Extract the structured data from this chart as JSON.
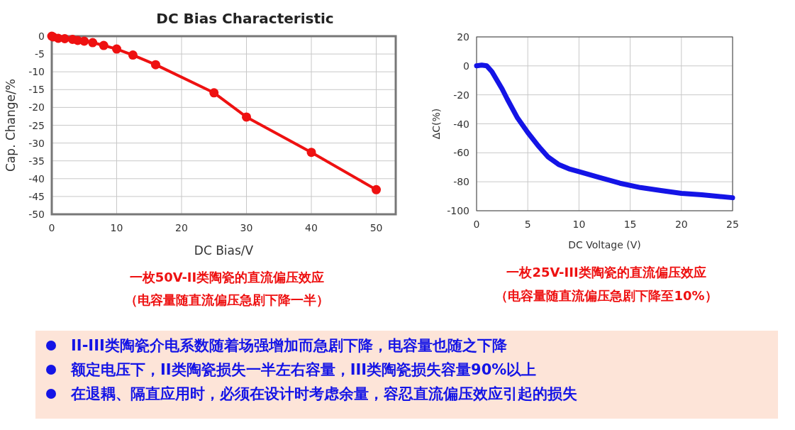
{
  "chart_data": [
    {
      "type": "line",
      "title": "DC Bias Characteristic",
      "xlabel": "DC Bias/V",
      "ylabel": "Cap. Change/%",
      "color": "#ee1111",
      "marker": "circle",
      "grid": true,
      "xlim": [
        0,
        53
      ],
      "ylim": [
        -50,
        0
      ],
      "xticks": [
        0,
        10,
        20,
        30,
        40,
        50
      ],
      "yticks": [
        0,
        -5,
        -10,
        -15,
        -20,
        -25,
        -30,
        -35,
        -40,
        -45,
        -50
      ],
      "x": [
        0,
        0.2,
        1,
        2,
        3.2,
        4,
        5,
        6.3,
        8,
        10,
        12.5,
        16,
        25,
        30,
        40,
        50
      ],
      "values": [
        0,
        -0.2,
        -0.6,
        -0.7,
        -0.9,
        -1.2,
        -1.4,
        -1.8,
        -2.6,
        -3.6,
        -5.3,
        -8,
        -15.9,
        -22.7,
        -32.6,
        -43.1
      ],
      "annotations": [
        "一枚50V-II类陶瓷的直流偏压效应",
        "（电容量随直流偏压急剧下降一半）"
      ]
    },
    {
      "type": "line",
      "xlabel": "DC Voltage (V)",
      "ylabel": "ΔC(%)",
      "color": "#1414e6",
      "grid": true,
      "xlim": [
        0,
        25
      ],
      "ylim": [
        -100,
        20
      ],
      "xticks": [
        0,
        5,
        10,
        15,
        20,
        25
      ],
      "yticks": [
        20,
        0,
        -20,
        -40,
        -60,
        -80,
        -100
      ],
      "x": [
        0,
        0.5,
        1,
        1.5,
        2,
        2.5,
        3,
        4,
        5,
        6,
        7,
        8,
        9,
        10,
        12,
        14,
        16,
        18,
        20,
        22,
        25
      ],
      "values": [
        0,
        0.5,
        0,
        -4,
        -10,
        -16,
        -23,
        -36,
        -46,
        -55,
        -63,
        -68,
        -71,
        -73,
        -77,
        -81,
        -84,
        -86,
        -88,
        -89,
        -91
      ],
      "annotations": [
        "一枚25V-III类陶瓷的直流偏压效应",
        "（电容量随直流偏压急剧下降至10%）"
      ]
    },
    {
      "type": "other",
      "annotations": [
        "II-III类陶瓷介电系数随着场强增加而急剧下降，电容量也随之下降",
        "额定电压下，II类陶瓷损失一半左右容量，III类陶瓷损失容量90%以上",
        "在退耦、隔直应用时，必须在设计时考虑余量，容忍直流偏压效应引起的损失"
      ]
    }
  ]
}
